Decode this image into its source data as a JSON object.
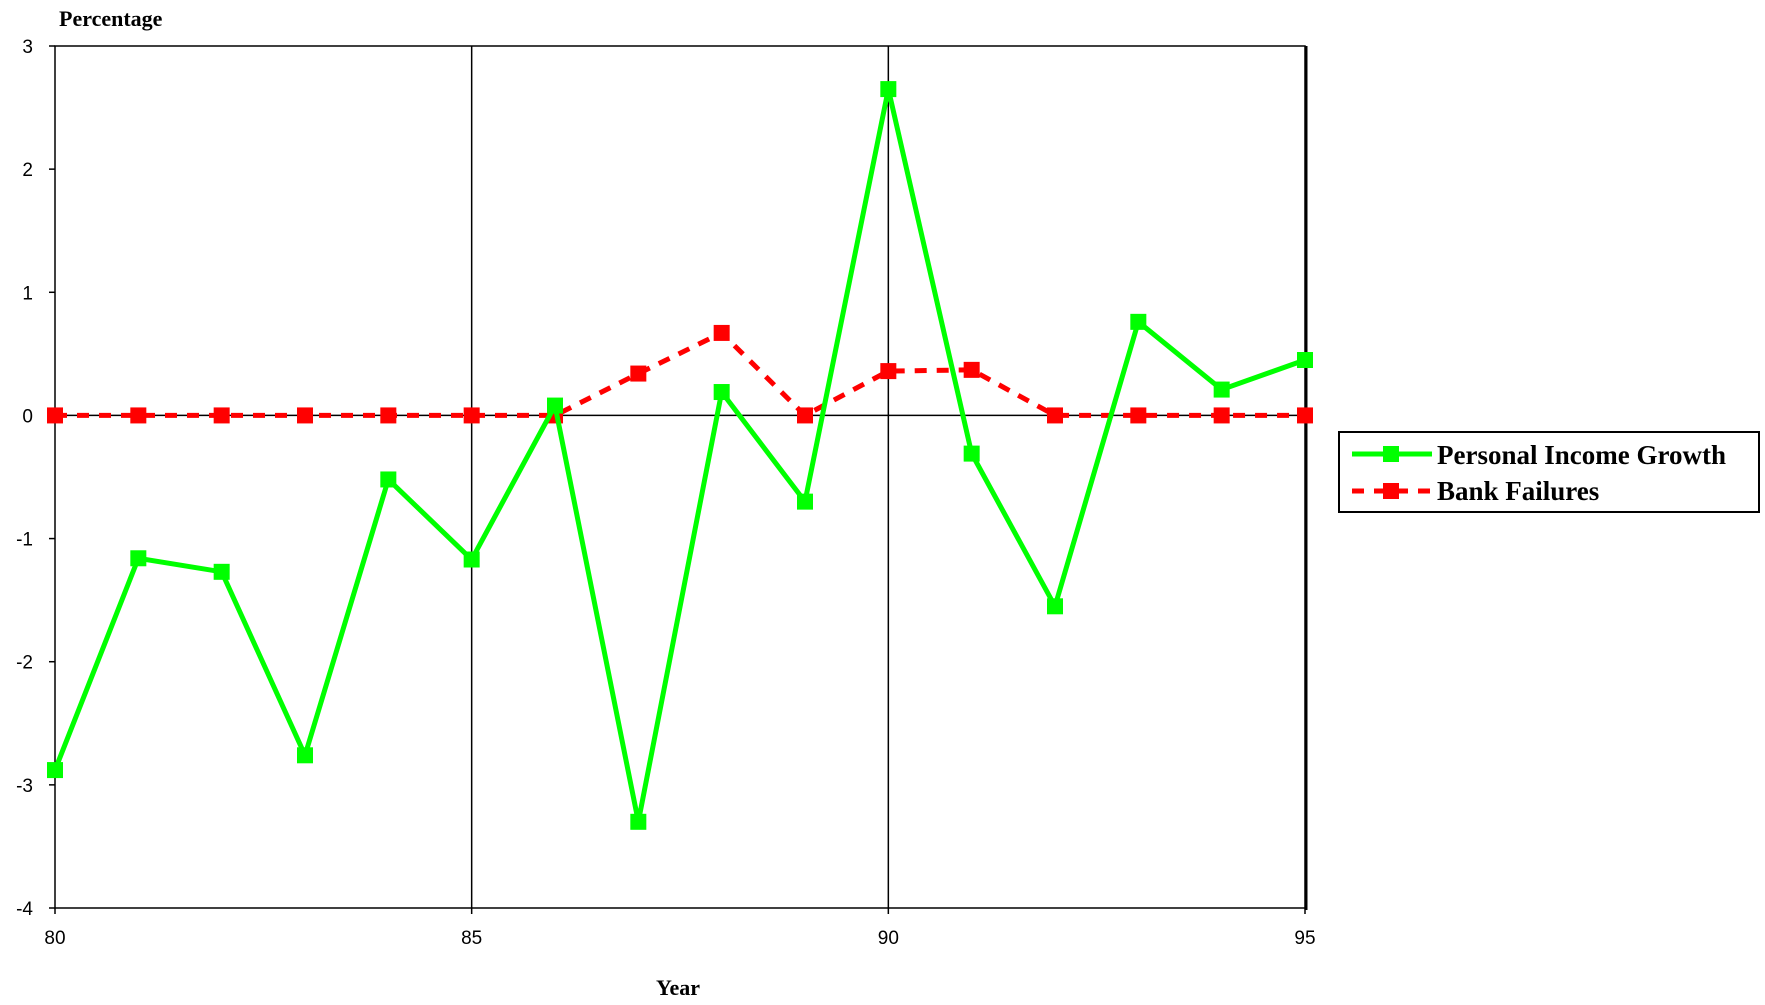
{
  "chart_data": {
    "type": "line",
    "ylabel": "Percentage",
    "xlabel": "Year",
    "xlim": [
      80,
      95
    ],
    "ylim": [
      -4,
      3
    ],
    "x_ticks": [
      80,
      85,
      90,
      95
    ],
    "y_ticks": [
      3,
      2,
      1,
      0,
      -1,
      -2,
      -3,
      -4
    ],
    "x_gridlines": [
      85,
      90
    ],
    "zero_line": true,
    "legend_position": "right",
    "x": [
      80,
      81,
      82,
      83,
      84,
      85,
      86,
      87,
      88,
      89,
      90,
      91,
      92,
      93,
      94,
      95
    ],
    "series": [
      {
        "name": "Personal Income Growth",
        "color": "#00ff00",
        "line_style": "solid",
        "marker": "square",
        "values": [
          -2.88,
          -1.16,
          -1.27,
          -2.76,
          -0.52,
          -1.17,
          0.08,
          -3.3,
          0.19,
          -0.7,
          2.65,
          -0.31,
          -1.55,
          0.76,
          0.21,
          0.45
        ]
      },
      {
        "name": "Bank Failures",
        "color": "#ff0000",
        "line_style": "dashed",
        "marker": "square",
        "values": [
          0,
          0,
          0,
          0,
          0,
          0,
          0,
          0.34,
          0.67,
          0,
          0.36,
          0.37,
          0,
          0,
          0,
          0
        ]
      }
    ]
  }
}
